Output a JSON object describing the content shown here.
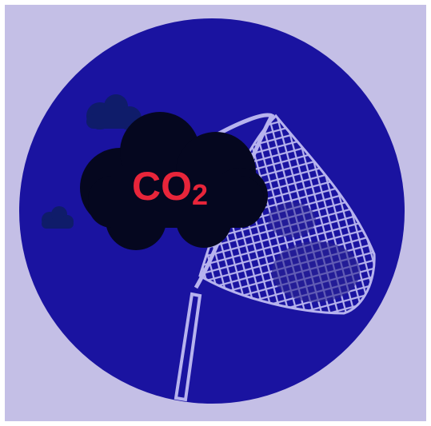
{
  "label": {
    "main": "CO",
    "subscript": "2"
  }
}
